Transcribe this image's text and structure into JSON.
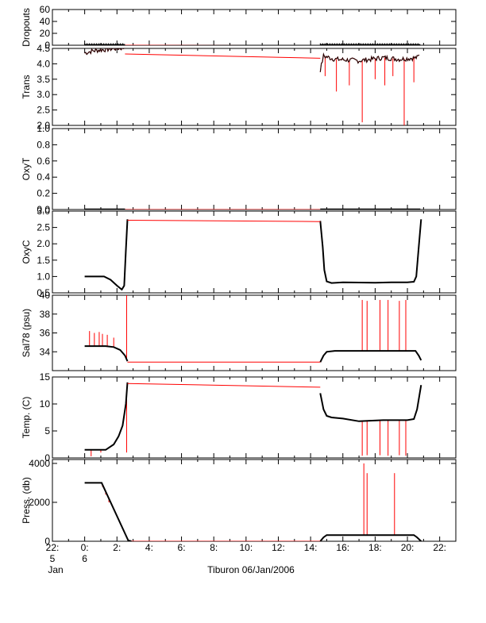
{
  "chart_data": [
    {
      "type": "line",
      "ylabel": "Dropouts",
      "yticks": [
        "0",
        "20",
        "40",
        "60"
      ],
      "ylim": [
        0,
        60
      ],
      "series": [
        {
          "color": "#000000",
          "style": "dense-markers",
          "segments": [
            {
              "t": [
                0.0,
                2.5
              ],
              "y": [
                0,
                0
              ]
            },
            {
              "t": [
                14.6,
                20.8
              ],
              "y": [
                0,
                0
              ]
            }
          ]
        },
        {
          "color": "#ff0000",
          "style": "line",
          "segments": [
            {
              "t": [
                2.5,
                14.6
              ],
              "y": [
                0,
                -1
              ]
            }
          ]
        }
      ]
    },
    {
      "type": "line",
      "ylabel": "Trans",
      "yticks": [
        "2.0",
        "2.5",
        "3.0",
        "3.5",
        "4.0",
        "4.5"
      ],
      "ylim": [
        2.0,
        4.5
      ],
      "series": [
        {
          "color": "#000000",
          "style": "noisy",
          "segments": [
            {
              "t": [
                0.0,
                0.5,
                1.5,
                2.5
              ],
              "y": [
                4.35,
                4.42,
                4.48,
                4.52
              ]
            },
            {
              "t": [
                14.6,
                14.8,
                15.5,
                17.0,
                18.5,
                19.5,
                20.6,
                20.8
              ],
              "y": [
                3.8,
                4.25,
                4.15,
                4.1,
                4.2,
                4.15,
                4.2,
                4.3
              ]
            }
          ]
        },
        {
          "color": "#ff0000",
          "style": "line",
          "segments": [
            {
              "t": [
                2.5,
                14.6
              ],
              "y": [
                4.32,
                4.18
              ]
            }
          ]
        }
      ],
      "spikes": [
        {
          "t": 14.9,
          "y": 3.6
        },
        {
          "t": 15.6,
          "y": 3.1
        },
        {
          "t": 16.4,
          "y": 3.3
        },
        {
          "t": 17.2,
          "y": 2.1
        },
        {
          "t": 18.0,
          "y": 3.5
        },
        {
          "t": 18.6,
          "y": 3.3
        },
        {
          "t": 19.1,
          "y": 3.6
        },
        {
          "t": 19.8,
          "y": 2.0
        },
        {
          "t": 20.4,
          "y": 3.4
        }
      ]
    },
    {
      "type": "line",
      "ylabel": "OxyT",
      "yticks": [
        "0.0",
        "0.2",
        "0.4",
        "0.6",
        "0.8",
        "1.0"
      ],
      "ylim": [
        0.0,
        1.0
      ],
      "series": []
    },
    {
      "type": "line",
      "ylabel": "OxyC",
      "yticks": [
        "0.5",
        "1.0",
        "1.5",
        "2.0",
        "2.5",
        "3.0"
      ],
      "ylim": [
        0.5,
        3.0
      ],
      "series": [
        {
          "color": "#000000",
          "style": "line",
          "segments": [
            {
              "t": [
                0.0,
                1.2,
                1.6,
                2.0,
                2.3,
                2.45,
                2.55,
                2.65
              ],
              "y": [
                1.0,
                1.0,
                0.9,
                0.72,
                0.6,
                0.72,
                1.8,
                2.75
              ]
            },
            {
              "t": [
                14.6,
                14.75,
                14.85,
                15.0,
                15.3,
                16.0,
                18.0,
                19.0,
                20.0,
                20.4,
                20.55,
                20.7,
                20.85
              ],
              "y": [
                2.7,
                1.9,
                1.2,
                0.85,
                0.8,
                0.82,
                0.81,
                0.82,
                0.82,
                0.84,
                1.0,
                1.9,
                2.75
              ]
            }
          ]
        },
        {
          "color": "#ff0000",
          "style": "line",
          "segments": [
            {
              "t": [
                2.65,
                14.6
              ],
              "y": [
                2.72,
                2.68
              ]
            }
          ]
        }
      ]
    },
    {
      "type": "line",
      "ylabel": "Sal78 (psu)",
      "yticks": [
        "34",
        "36",
        "38",
        "40"
      ],
      "ylim": [
        32,
        40
      ],
      "series": [
        {
          "color": "#000000",
          "style": "line",
          "segments": [
            {
              "t": [
                0.0,
                1.3,
                1.8,
                2.2,
                2.5,
                2.65
              ],
              "y": [
                34.6,
                34.6,
                34.5,
                34.2,
                33.6,
                33.0
              ]
            },
            {
              "t": [
                14.6,
                14.8,
                15.0,
                15.5,
                17.0,
                19.0,
                20.2,
                20.5,
                20.7,
                20.85
              ],
              "y": [
                32.9,
                33.6,
                34.0,
                34.1,
                34.1,
                34.1,
                34.1,
                34.1,
                33.6,
                33.1
              ]
            }
          ]
        },
        {
          "color": "#ff0000",
          "style": "line",
          "segments": [
            {
              "t": [
                2.65,
                14.6
              ],
              "y": [
                32.9,
                32.9
              ]
            }
          ]
        }
      ],
      "spikes": [
        {
          "t": 0.3,
          "y": 36.2
        },
        {
          "t": 0.6,
          "y": 36.0
        },
        {
          "t": 0.9,
          "y": 36.1
        },
        {
          "t": 1.1,
          "y": 35.9
        },
        {
          "t": 1.4,
          "y": 35.8
        },
        {
          "t": 1.8,
          "y": 35.5
        },
        {
          "t": 2.6,
          "y": 40.0
        },
        {
          "t": 17.2,
          "y": 39.5
        },
        {
          "t": 17.5,
          "y": 39.4
        },
        {
          "t": 18.3,
          "y": 39.5
        },
        {
          "t": 18.8,
          "y": 39.5
        },
        {
          "t": 19.5,
          "y": 39.4
        },
        {
          "t": 19.9,
          "y": 39.5
        }
      ]
    },
    {
      "type": "line",
      "ylabel": "Temp. (C)",
      "yticks": [
        "0",
        "5",
        "10",
        "15"
      ],
      "ylim": [
        0,
        15
      ],
      "series": [
        {
          "color": "#000000",
          "style": "line",
          "segments": [
            {
              "t": [
                0.0,
                1.3,
                1.8,
                2.1,
                2.35,
                2.55,
                2.65
              ],
              "y": [
                1.5,
                1.5,
                2.5,
                4.0,
                6.0,
                10.0,
                14.0
              ]
            },
            {
              "t": [
                14.6,
                14.8,
                15.0,
                15.3,
                16.0,
                17.0,
                18.5,
                20.0,
                20.4,
                20.6,
                20.85
              ],
              "y": [
                12.0,
                9.0,
                7.8,
                7.5,
                7.3,
                6.8,
                7.0,
                7.0,
                7.2,
                9.0,
                13.5
              ]
            }
          ]
        },
        {
          "color": "#ff0000",
          "style": "line",
          "segments": [
            {
              "t": [
                2.65,
                14.6
              ],
              "y": [
                13.8,
                13.1
              ]
            }
          ]
        }
      ],
      "spikes": [
        {
          "t": 0.4,
          "y": 0.3
        },
        {
          "t": 1.0,
          "y": 1.0
        },
        {
          "t": 2.6,
          "y": 1.0
        },
        {
          "t": 17.2,
          "y": 0.4
        },
        {
          "t": 17.5,
          "y": 0.5
        },
        {
          "t": 18.3,
          "y": 0.5
        },
        {
          "t": 18.8,
          "y": 0.4
        },
        {
          "t": 19.5,
          "y": 0.5
        },
        {
          "t": 19.9,
          "y": 0.4
        }
      ]
    },
    {
      "type": "line",
      "ylabel": "Press. (db)",
      "yticks": [
        "0",
        "2000",
        "4000"
      ],
      "ylim": [
        0,
        4200
      ],
      "series": [
        {
          "color": "#000000",
          "style": "line",
          "segments": [
            {
              "t": [
                0.0,
                1.05,
                2.7,
                2.9
              ],
              "y": [
                3000,
                3000,
                40,
                0
              ]
            },
            {
              "t": [
                14.6,
                14.8,
                15.0,
                20.4,
                20.6,
                20.85
              ],
              "y": [
                0,
                200,
                320,
                320,
                200,
                0
              ]
            }
          ]
        },
        {
          "color": "#ff0000",
          "style": "line",
          "segments": [
            {
              "t": [
                2.9,
                14.6
              ],
              "y": [
                0,
                0
              ]
            }
          ]
        }
      ],
      "spikes": [
        {
          "t": 0.35,
          "y": 3000
        },
        {
          "t": 0.7,
          "y": 3000
        },
        {
          "t": 0.9,
          "y": 3000
        },
        {
          "t": 1.1,
          "y": 2800
        },
        {
          "t": 1.3,
          "y": 2400
        },
        {
          "t": 1.5,
          "y": 2000
        },
        {
          "t": 17.3,
          "y": 4000
        },
        {
          "t": 17.5,
          "y": 3500
        },
        {
          "t": 19.2,
          "y": 3500
        }
      ]
    }
  ],
  "time_axis": {
    "range_hours": [
      -2,
      23
    ],
    "major_ticks": [
      {
        "t": -2,
        "label": "22:",
        "sub": "5"
      },
      {
        "t": 0,
        "label": "0:",
        "sub": "6"
      },
      {
        "t": 2,
        "label": "2:"
      },
      {
        "t": 4,
        "label": "4:"
      },
      {
        "t": 6,
        "label": "6:"
      },
      {
        "t": 8,
        "label": "8:"
      },
      {
        "t": 10,
        "label": "10:"
      },
      {
        "t": 12,
        "label": "12:"
      },
      {
        "t": 14,
        "label": "14:"
      },
      {
        "t": 16,
        "label": "16:"
      },
      {
        "t": 18,
        "label": "18:"
      },
      {
        "t": 20,
        "label": "20:"
      },
      {
        "t": 22,
        "label": "22:"
      }
    ],
    "month_label": "Jan",
    "title": "Tiburon 06/Jan/2006"
  }
}
